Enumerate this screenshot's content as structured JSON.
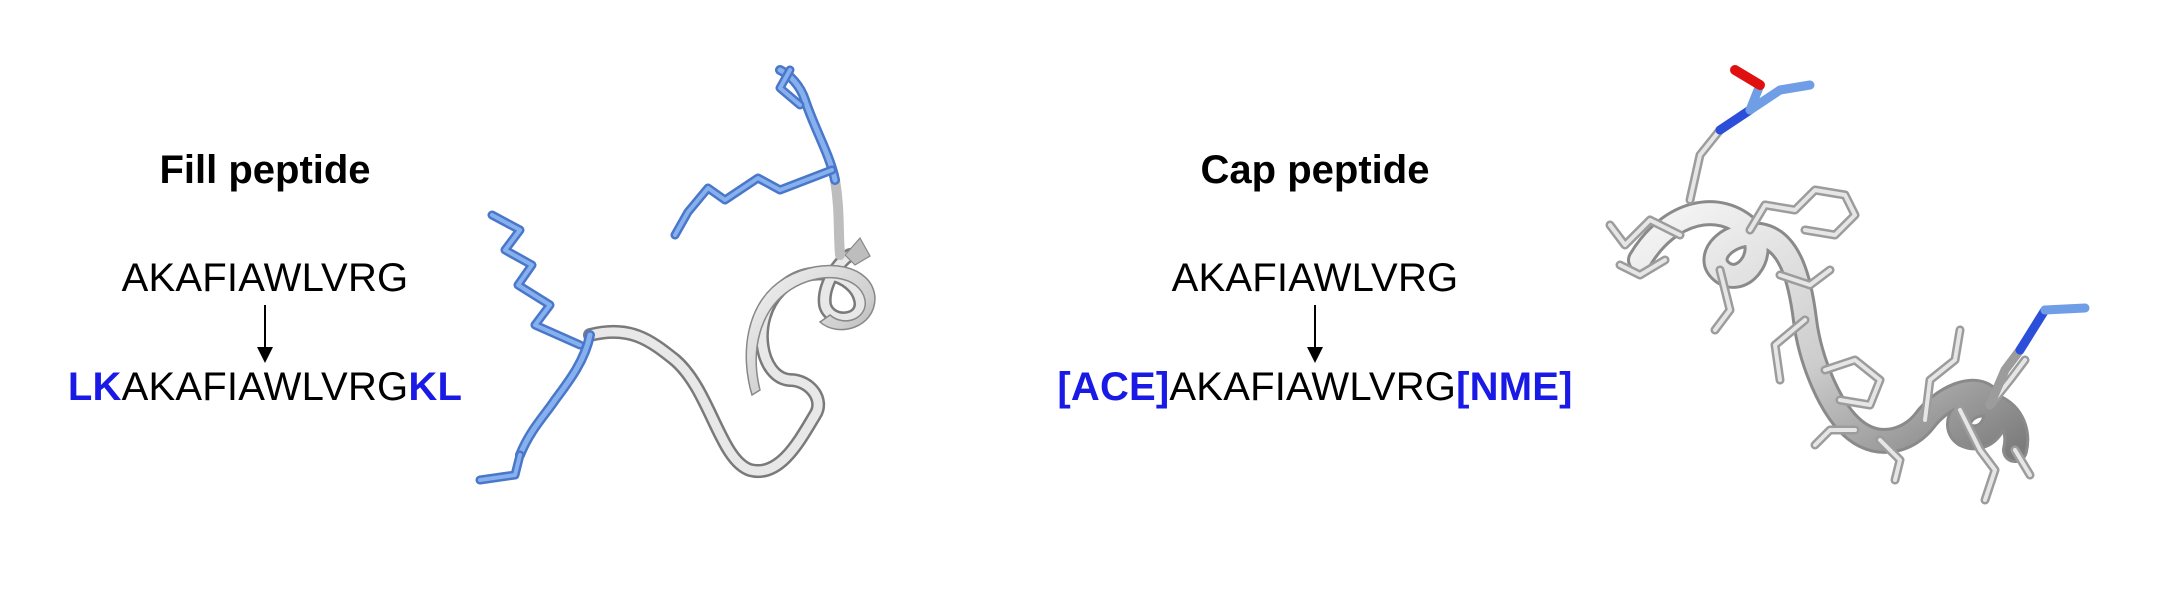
{
  "panels": {
    "fill": {
      "title": "Fill peptide",
      "original_sequence": "AKAFIAWLVRG",
      "modified_prefix": "LK",
      "modified_core": "AKAFIAWLVRG",
      "modified_suffix": "KL"
    },
    "cap": {
      "title": "Cap peptide",
      "original_sequence": "AKAFIAWLVRG",
      "modified_prefix": "[ACE]",
      "modified_core": "AKAFIAWLVRG",
      "modified_suffix": "[NME]"
    }
  },
  "colors": {
    "modification_text": "#1a1ae6",
    "backbone": "#d4d4d4",
    "added_residues": "#6f9ee6",
    "nitrogen": "#2b4fd9",
    "oxygen": "#e01010"
  }
}
